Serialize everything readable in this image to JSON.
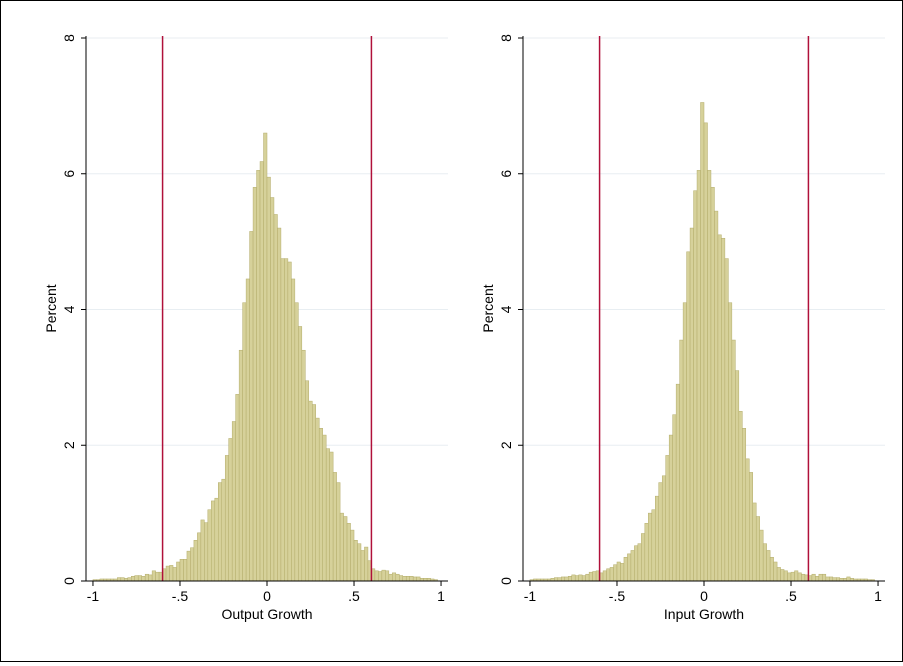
{
  "colors": {
    "bar_fill": "#d6d19a",
    "bar_stroke": "#b3ac6a",
    "vline": "#b0103a",
    "grid": "#e8eef2",
    "axis": "#000000"
  },
  "chart_data": [
    {
      "type": "bar",
      "subtype": "histogram",
      "xlabel": "Output Growth",
      "ylabel": "Percent",
      "xlim": [
        -1,
        1
      ],
      "ylim": [
        0,
        8
      ],
      "xticks": [
        "-1",
        "-.5",
        "0",
        ".5",
        "1"
      ],
      "yticks": [
        "0",
        "2",
        "4",
        "6",
        "8"
      ],
      "grid": true,
      "reference_lines_x": [
        -0.6,
        0.6
      ],
      "bin_width": 0.02,
      "x": [
        -0.99,
        -0.97,
        -0.95,
        -0.93,
        -0.91,
        -0.89,
        -0.87,
        -0.85,
        -0.83,
        -0.81,
        -0.79,
        -0.77,
        -0.75,
        -0.73,
        -0.71,
        -0.69,
        -0.67,
        -0.65,
        -0.63,
        -0.61,
        -0.59,
        -0.57,
        -0.55,
        -0.53,
        -0.51,
        -0.49,
        -0.47,
        -0.45,
        -0.43,
        -0.41,
        -0.39,
        -0.37,
        -0.35,
        -0.33,
        -0.31,
        -0.29,
        -0.27,
        -0.25,
        -0.23,
        -0.21,
        -0.19,
        -0.17,
        -0.15,
        -0.13,
        -0.11,
        -0.09,
        -0.07,
        -0.05,
        -0.03,
        -0.01,
        0.01,
        0.03,
        0.05,
        0.07,
        0.09,
        0.11,
        0.13,
        0.15,
        0.17,
        0.19,
        0.21,
        0.23,
        0.25,
        0.27,
        0.29,
        0.31,
        0.33,
        0.35,
        0.37,
        0.39,
        0.41,
        0.43,
        0.45,
        0.47,
        0.49,
        0.51,
        0.53,
        0.55,
        0.57,
        0.59,
        0.61,
        0.63,
        0.65,
        0.67,
        0.69,
        0.71,
        0.73,
        0.75,
        0.77,
        0.79,
        0.81,
        0.83,
        0.85,
        0.87,
        0.89,
        0.91,
        0.93,
        0.95,
        0.97
      ],
      "values": [
        0.02,
        0.02,
        0.03,
        0.03,
        0.03,
        0.03,
        0.03,
        0.05,
        0.05,
        0.04,
        0.05,
        0.07,
        0.08,
        0.08,
        0.07,
        0.1,
        0.09,
        0.15,
        0.13,
        0.13,
        0.18,
        0.22,
        0.23,
        0.2,
        0.28,
        0.32,
        0.32,
        0.44,
        0.49,
        0.6,
        0.71,
        0.9,
        0.86,
        1.05,
        1.18,
        1.22,
        1.45,
        1.5,
        1.85,
        2.1,
        2.35,
        2.75,
        3.4,
        4.1,
        4.45,
        5.15,
        5.8,
        6.05,
        6.18,
        6.6,
        5.95,
        5.65,
        5.4,
        5.2,
        4.75,
        4.75,
        4.7,
        4.45,
        4.1,
        3.75,
        3.4,
        2.95,
        2.65,
        2.6,
        2.4,
        2.25,
        2.15,
        1.95,
        1.9,
        1.6,
        1.45,
        1.0,
        0.95,
        0.85,
        0.75,
        0.6,
        0.55,
        0.45,
        0.5,
        0.3,
        0.18,
        0.15,
        0.14,
        0.16,
        0.15,
        0.1,
        0.12,
        0.1,
        0.08,
        0.07,
        0.07,
        0.07,
        0.06,
        0.06,
        0.04,
        0.04,
        0.04,
        0.03,
        0.02
      ]
    },
    {
      "type": "bar",
      "subtype": "histogram",
      "xlabel": "Input Growth",
      "ylabel": "Percent",
      "xlim": [
        -1,
        1
      ],
      "ylim": [
        0,
        8
      ],
      "xticks": [
        "-1",
        "-.5",
        "0",
        ".5",
        "1"
      ],
      "yticks": [
        "0",
        "2",
        "4",
        "6",
        "8"
      ],
      "grid": true,
      "reference_lines_x": [
        -0.6,
        0.6
      ],
      "bin_width": 0.02,
      "x": [
        -0.99,
        -0.97,
        -0.95,
        -0.93,
        -0.91,
        -0.89,
        -0.87,
        -0.85,
        -0.83,
        -0.81,
        -0.79,
        -0.77,
        -0.75,
        -0.73,
        -0.71,
        -0.69,
        -0.67,
        -0.65,
        -0.63,
        -0.61,
        -0.59,
        -0.57,
        -0.55,
        -0.53,
        -0.51,
        -0.49,
        -0.47,
        -0.45,
        -0.43,
        -0.41,
        -0.39,
        -0.37,
        -0.35,
        -0.33,
        -0.31,
        -0.29,
        -0.27,
        -0.25,
        -0.23,
        -0.21,
        -0.19,
        -0.17,
        -0.15,
        -0.13,
        -0.11,
        -0.09,
        -0.07,
        -0.05,
        -0.03,
        -0.01,
        0.01,
        0.03,
        0.05,
        0.07,
        0.09,
        0.11,
        0.13,
        0.15,
        0.17,
        0.19,
        0.21,
        0.23,
        0.25,
        0.27,
        0.29,
        0.31,
        0.33,
        0.35,
        0.37,
        0.39,
        0.41,
        0.43,
        0.45,
        0.47,
        0.49,
        0.51,
        0.53,
        0.55,
        0.57,
        0.59,
        0.61,
        0.63,
        0.65,
        0.67,
        0.69,
        0.71,
        0.73,
        0.75,
        0.77,
        0.79,
        0.81,
        0.83,
        0.85,
        0.87,
        0.89,
        0.91,
        0.93,
        0.95,
        0.97
      ],
      "values": [
        0.02,
        0.03,
        0.03,
        0.03,
        0.03,
        0.03,
        0.04,
        0.05,
        0.05,
        0.06,
        0.06,
        0.07,
        0.09,
        0.08,
        0.09,
        0.08,
        0.1,
        0.13,
        0.14,
        0.15,
        0.12,
        0.15,
        0.18,
        0.2,
        0.24,
        0.28,
        0.26,
        0.35,
        0.4,
        0.45,
        0.52,
        0.55,
        0.7,
        0.85,
        1.0,
        1.05,
        1.25,
        1.45,
        1.55,
        1.85,
        2.15,
        2.45,
        2.9,
        3.55,
        4.1,
        4.85,
        5.2,
        5.75,
        6.05,
        7.05,
        6.75,
        6.05,
        5.8,
        5.45,
        5.1,
        5.05,
        4.75,
        4.1,
        3.55,
        3.1,
        2.5,
        2.25,
        1.8,
        1.6,
        1.15,
        0.95,
        0.75,
        0.55,
        0.45,
        0.35,
        0.28,
        0.2,
        0.17,
        0.15,
        0.12,
        0.13,
        0.15,
        0.12,
        0.1,
        0.09,
        0.08,
        0.1,
        0.07,
        0.1,
        0.1,
        0.06,
        0.06,
        0.05,
        0.05,
        0.04,
        0.04,
        0.06,
        0.04,
        0.03,
        0.03,
        0.03,
        0.03,
        0.02,
        0.02
      ]
    }
  ]
}
